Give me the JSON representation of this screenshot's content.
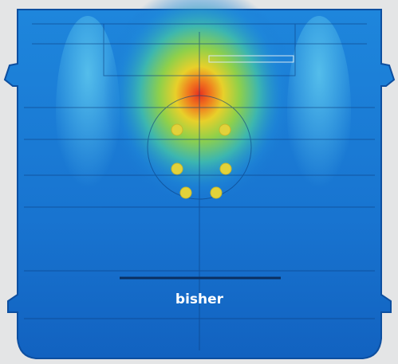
{
  "label": "bisher"
}
